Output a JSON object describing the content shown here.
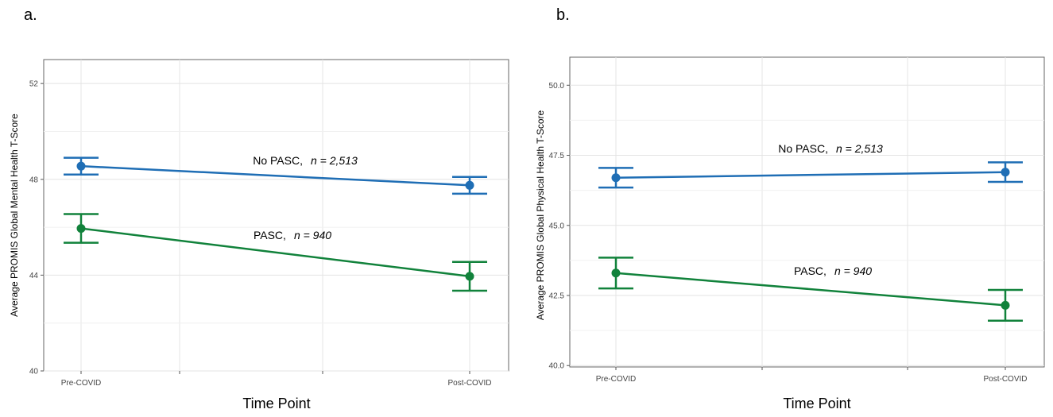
{
  "chart_data": [
    {
      "type": "line",
      "panel_label": "a.",
      "title": "",
      "xlabel": "Time Point",
      "ylabel": "Average PROMIS Global Mental Health T-Score",
      "categories": [
        "Pre-COVID",
        "Post-COVID"
      ],
      "ylim": [
        40,
        53
      ],
      "yticks": [
        40,
        44,
        48,
        52
      ],
      "ytick_labels": [
        "40",
        "44",
        "48",
        "52"
      ],
      "grid": true,
      "series": [
        {
          "name": "No PASC",
          "label_prefix": "No PASC,",
          "label_n": "n = 2,513",
          "color": "#1f6eb5",
          "values": [
            48.55,
            47.75
          ],
          "lower": [
            48.2,
            47.4
          ],
          "upper": [
            48.9,
            48.1
          ]
        },
        {
          "name": "PASC",
          "label_prefix": "PASC,",
          "label_n": "n = 940",
          "color": "#11823b",
          "values": [
            45.95,
            43.95
          ],
          "lower": [
            45.35,
            43.35
          ],
          "upper": [
            46.55,
            44.55
          ]
        }
      ]
    },
    {
      "type": "line",
      "panel_label": "b.",
      "title": "",
      "xlabel": "Time Point",
      "ylabel": "Average PROMIS Global Physical Health T-Score",
      "categories": [
        "Pre-COVID",
        "Post-COVID"
      ],
      "ylim": [
        39.95,
        51.0
      ],
      "yticks": [
        40.0,
        42.5,
        45.0,
        47.5,
        50.0
      ],
      "ytick_labels": [
        "40.0",
        "42.5",
        "45.0",
        "47.5",
        "50.0"
      ],
      "grid": true,
      "series": [
        {
          "name": "No PASC",
          "label_prefix": "No PASC,",
          "label_n": "n = 2,513",
          "color": "#1f6eb5",
          "values": [
            46.7,
            46.9
          ],
          "lower": [
            46.35,
            46.55
          ],
          "upper": [
            47.05,
            47.25
          ]
        },
        {
          "name": "PASC",
          "label_prefix": "PASC,",
          "label_n": "n = 940",
          "color": "#11823b",
          "values": [
            43.3,
            42.15
          ],
          "lower": [
            42.75,
            41.6
          ],
          "upper": [
            43.85,
            42.7
          ]
        }
      ]
    }
  ]
}
